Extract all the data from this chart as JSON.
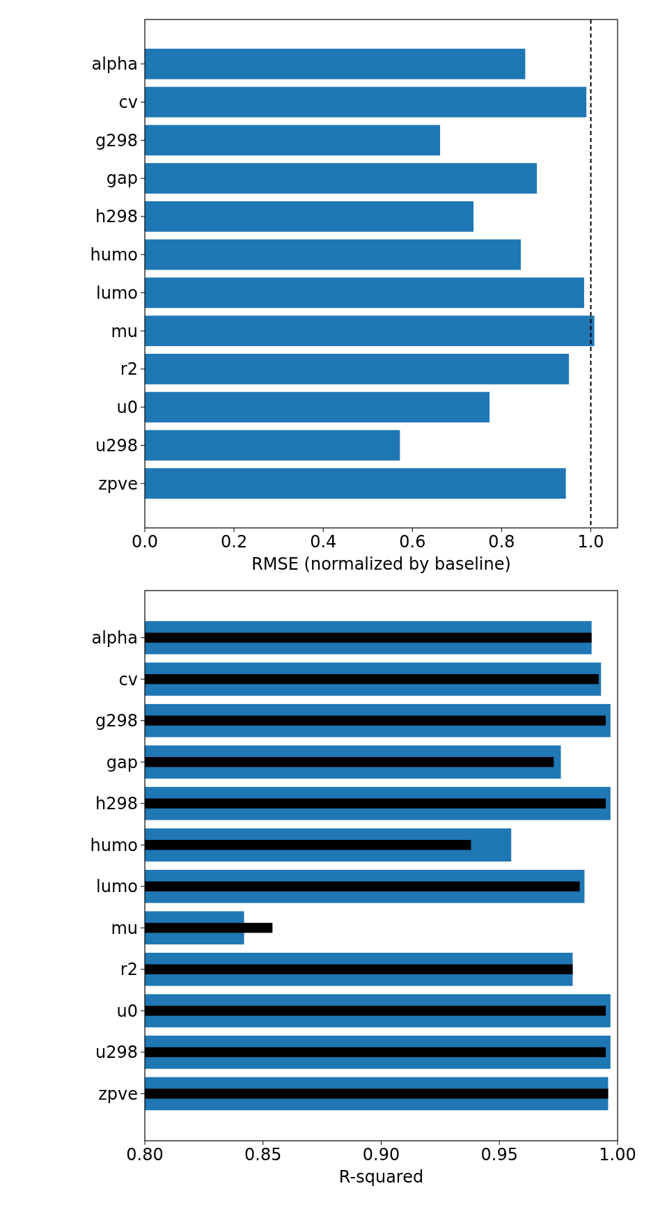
{
  "chart_data": [
    {
      "type": "bar",
      "orientation": "horizontal",
      "categories": [
        "alpha",
        "cv",
        "g298",
        "gap",
        "h298",
        "humo",
        "lumo",
        "mu",
        "r2",
        "u0",
        "u298",
        "zpve"
      ],
      "values": [
        0.853,
        0.99,
        0.662,
        0.879,
        0.737,
        0.843,
        0.985,
        1.008,
        0.951,
        0.773,
        0.572,
        0.944
      ],
      "color": "#1f77b4",
      "xlim": [
        0,
        1.06
      ],
      "xticks": [
        {
          "value": 0,
          "label": "0.0"
        },
        {
          "value": 0.2,
          "label": "0.2"
        },
        {
          "value": 0.4,
          "label": "0.4"
        },
        {
          "value": 0.6,
          "label": "0.6"
        },
        {
          "value": 0.8,
          "label": "0.8"
        },
        {
          "value": 1,
          "label": "1.0"
        }
      ],
      "xlabel": "RMSE (normalized by baseline)",
      "ref_lines": [
        {
          "axis": "x",
          "value": 1,
          "color": "#000000",
          "line_style": "dashed"
        }
      ]
    },
    {
      "type": "bar",
      "orientation": "horizontal",
      "categories": [
        "alpha",
        "cv",
        "g298",
        "gap",
        "h298",
        "humo",
        "lumo",
        "mu",
        "r2",
        "u0",
        "u298",
        "zpve"
      ],
      "series": [
        {
          "color": "#1f77b4",
          "values": [
            0.989,
            0.993,
            0.997,
            0.976,
            0.997,
            0.955,
            0.986,
            0.842,
            0.981,
            0.997,
            0.997,
            0.996
          ]
        },
        {
          "color": "#000000",
          "values": [
            0.989,
            0.992,
            0.995,
            0.973,
            0.995,
            0.938,
            0.984,
            0.854,
            0.981,
            0.995,
            0.995,
            0.996
          ]
        }
      ],
      "xlim": [
        0.8,
        1.0
      ],
      "xticks": [
        {
          "value": 0.8,
          "label": "0.80"
        },
        {
          "value": 0.85,
          "label": "0.85"
        },
        {
          "value": 0.9,
          "label": "0.90"
        },
        {
          "value": 0.95,
          "label": "0.95"
        },
        {
          "value": 1.0,
          "label": "1.00"
        }
      ],
      "xlabel": "R-squared"
    }
  ]
}
